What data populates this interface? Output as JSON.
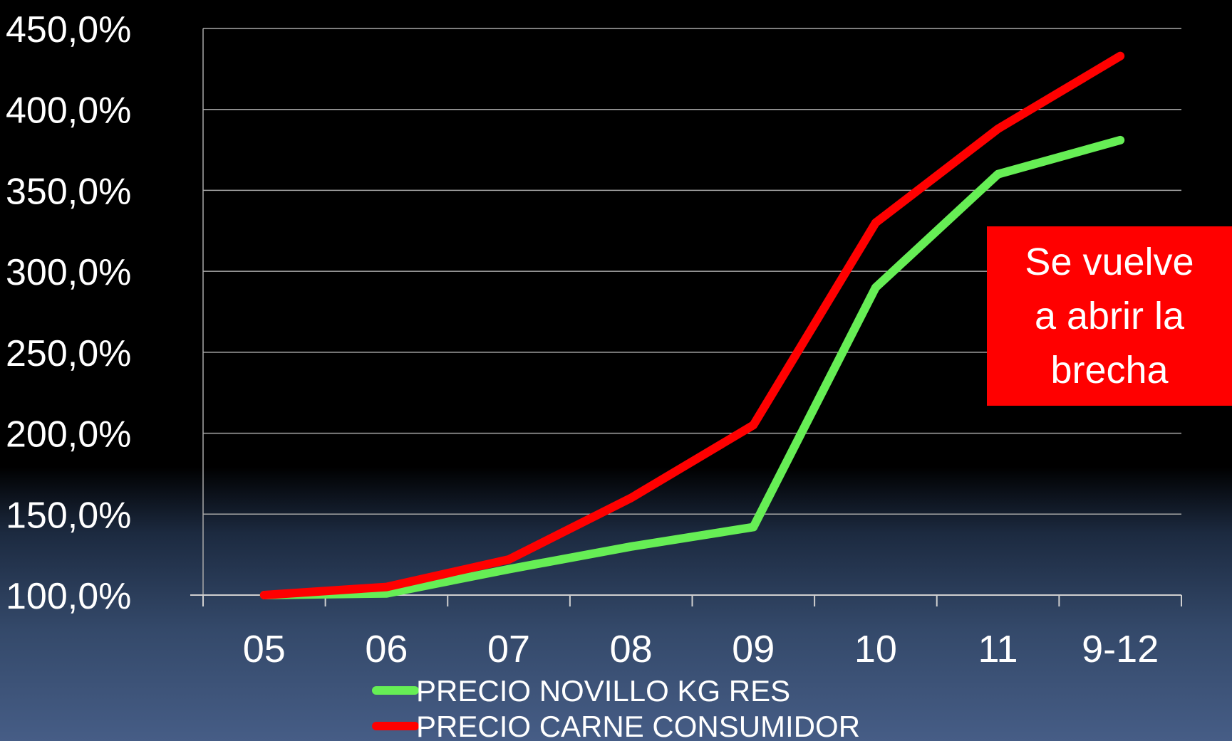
{
  "chart_data": {
    "type": "line",
    "title": "",
    "xlabel": "",
    "ylabel": "",
    "categories": [
      "05",
      "06",
      "07",
      "08",
      "09",
      "10",
      "11",
      "9-12"
    ],
    "ylim": [
      100,
      450
    ],
    "yticks": [
      "450,0%",
      "400,0%",
      "350,0%",
      "300,0%",
      "250,0%",
      "200,0%",
      "150,0%",
      "100,0%"
    ],
    "ytick_values": [
      450,
      400,
      350,
      300,
      250,
      200,
      150,
      100
    ],
    "grid": true,
    "legend_position": "bottom",
    "series": [
      {
        "name": "PRECIO NOVILLO KG RES",
        "color": "#66ee55",
        "values": [
          100,
          101,
          116,
          130,
          142,
          290,
          360,
          381
        ]
      },
      {
        "name": "PRECIO CARNE CONSUMIDOR",
        "color": "#ff0000",
        "values": [
          100,
          105,
          122,
          160,
          205,
          330,
          388,
          433
        ]
      }
    ],
    "annotation": {
      "lines": [
        "Se vuelve",
        "a abrir la",
        "brecha"
      ],
      "background": "#ff0000"
    }
  }
}
